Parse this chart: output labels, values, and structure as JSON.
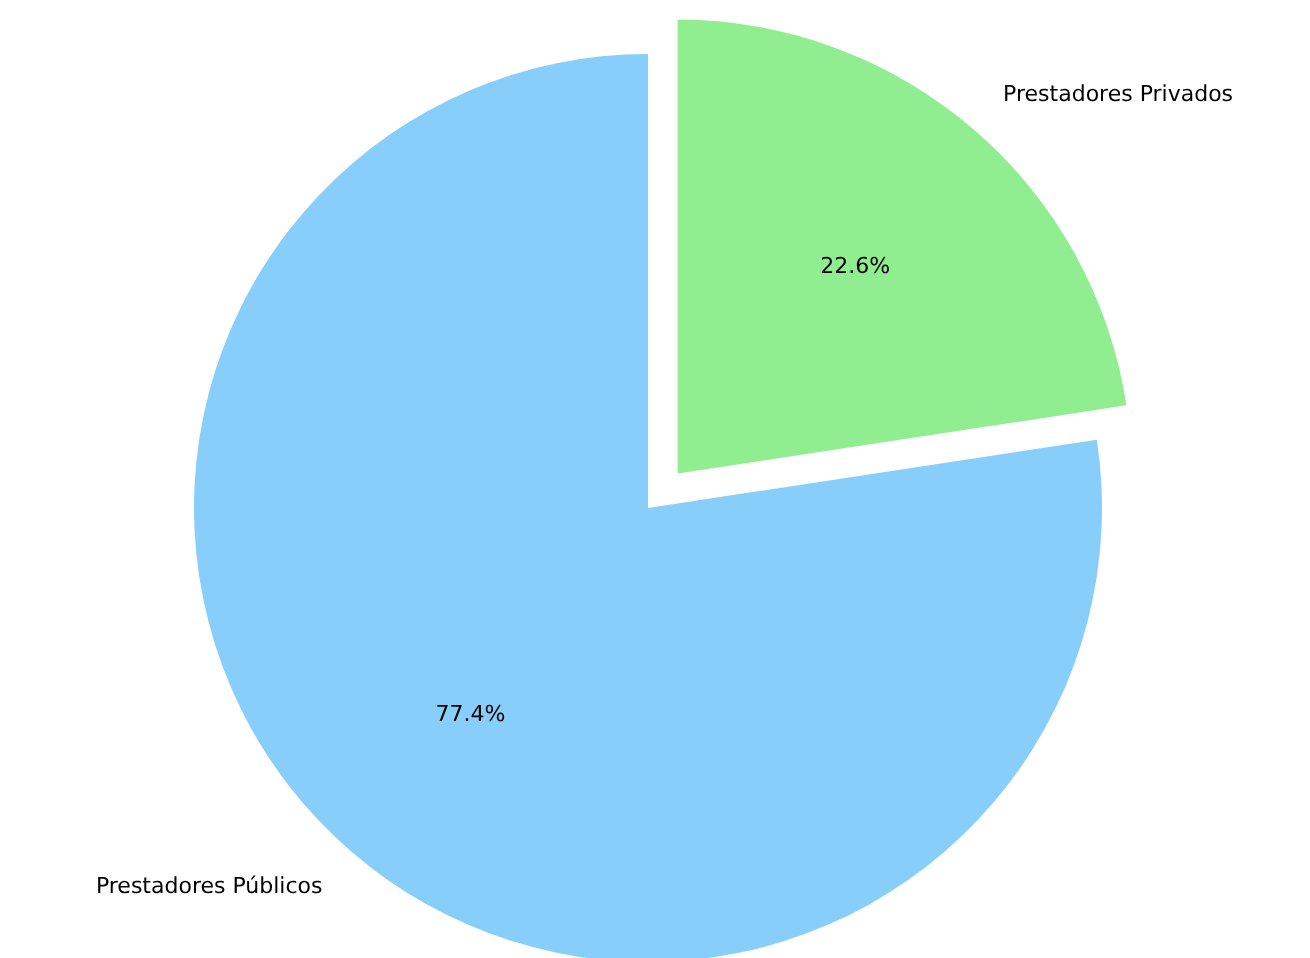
{
  "chart_data": {
    "type": "pie",
    "categories": [
      "Prestadores Públicos",
      "Prestadores Privados"
    ],
    "values": [
      77.4,
      22.6
    ],
    "colors": [
      "#87cefa",
      "#90ee90"
    ],
    "value_labels": [
      "77.4%",
      "22.6%"
    ]
  }
}
